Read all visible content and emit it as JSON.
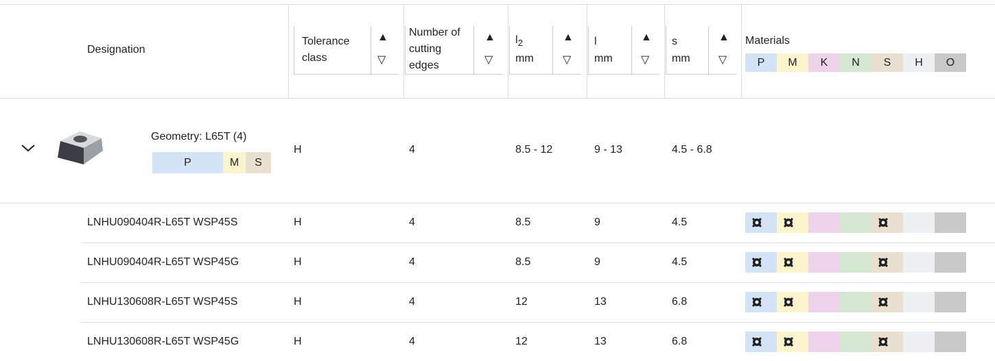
{
  "header": {
    "designation": "Designation",
    "tolerance": "Tolerance class",
    "cutting_edges": "Number of cutting edges",
    "l2_symbol": "l",
    "l2_subscript": "2",
    "l2_unit": "mm",
    "l_symbol": "l",
    "l_unit": "mm",
    "s_symbol": "s",
    "s_unit": "mm",
    "materials": "Materials",
    "material_codes": [
      "P",
      "M",
      "K",
      "N",
      "S",
      "H",
      "O"
    ]
  },
  "group": {
    "geometry": "Geometry: L65T (4)",
    "materials": [
      "P",
      "M",
      "S"
    ],
    "tolerance": "H",
    "cutting_edges": 4,
    "l2": "8.5 - 12",
    "l": "9 - 13",
    "s": "4.5 - 6.8"
  },
  "rows": [
    {
      "designation": "LNHU090404R-L65T WSP45S",
      "tolerance": "H",
      "cutting_edges": 4,
      "l2": 8.5,
      "l": 9,
      "s": 4.5
    },
    {
      "designation": "LNHU090404R-L65T WSP45G",
      "tolerance": "H",
      "cutting_edges": 4,
      "l2": 8.5,
      "l": 9,
      "s": 4.5
    },
    {
      "designation": "LNHU130608R-L65T WSP45S",
      "tolerance": "H",
      "cutting_edges": 4,
      "l2": 12,
      "l": 13,
      "s": 6.8
    },
    {
      "designation": "LNHU130608R-L65T WSP45G",
      "tolerance": "H",
      "cutting_edges": 4,
      "l2": 12,
      "l": 13,
      "s": 6.8
    }
  ]
}
